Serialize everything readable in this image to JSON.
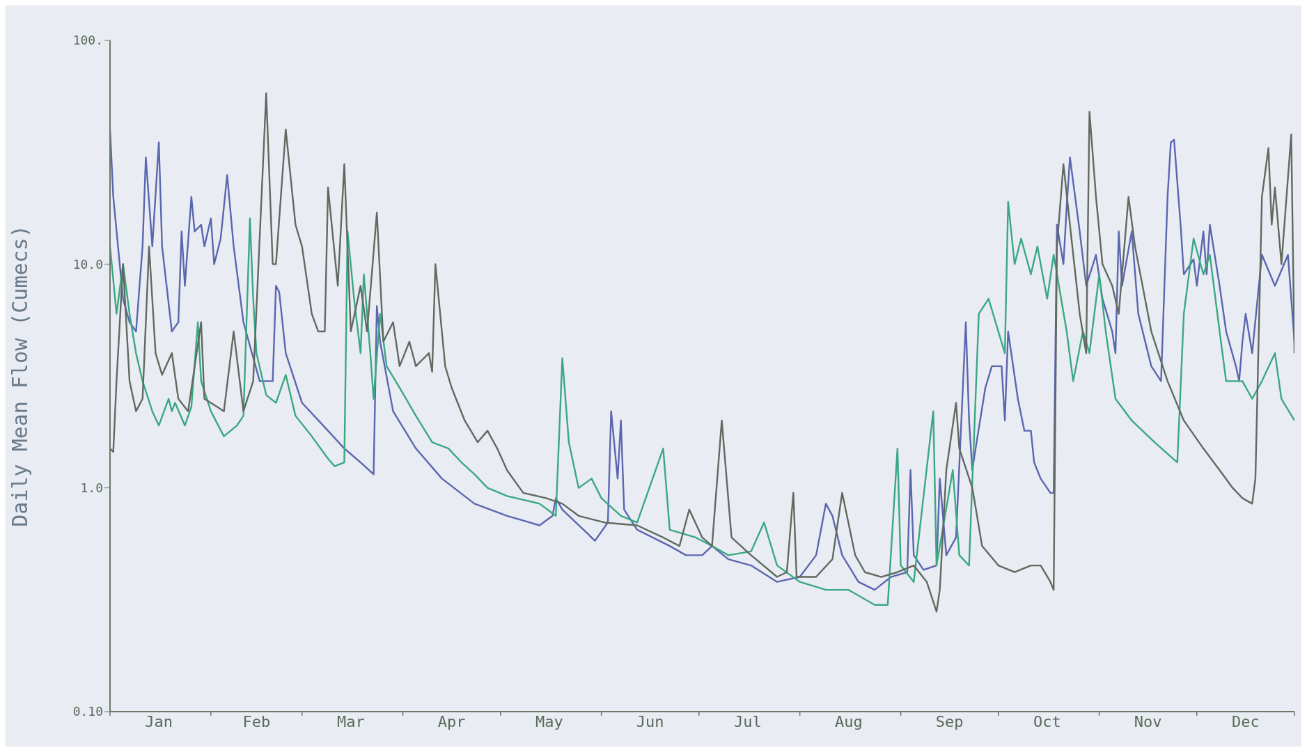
{
  "chart_data": {
    "type": "line",
    "ylabel": "Daily Mean Flow (Cumecs)",
    "log": "y",
    "grid": false,
    "marker": "none",
    "line_style": "solid",
    "xlim": [
      "--01-01",
      "--12-31"
    ],
    "xticks": [
      {
        "value": "--01-01",
        "label": null
      },
      {
        "value": "--01-16",
        "label": "Jan"
      },
      {
        "value": "--02-01",
        "label": null
      },
      {
        "value": "--02-15",
        "label": "Feb"
      },
      {
        "value": "--03-01",
        "label": null
      },
      {
        "value": "--03-16",
        "label": "Mar"
      },
      {
        "value": "--04-01",
        "label": null
      },
      {
        "value": "--04-16",
        "label": "Apr"
      },
      {
        "value": "--05-01",
        "label": null
      },
      {
        "value": "--05-16",
        "label": "May"
      },
      {
        "value": "--06-01",
        "label": null
      },
      {
        "value": "--06-16",
        "label": "Jun"
      },
      {
        "value": "--07-01",
        "label": null
      },
      {
        "value": "--07-16",
        "label": "Jul"
      },
      {
        "value": "--08-01",
        "label": null
      },
      {
        "value": "--08-16",
        "label": "Aug"
      },
      {
        "value": "--09-01",
        "label": null
      },
      {
        "value": "--09-16",
        "label": "Sep"
      },
      {
        "value": "--10-01",
        "label": null
      },
      {
        "value": "--10-16",
        "label": "Oct"
      },
      {
        "value": "--11-01",
        "label": null
      },
      {
        "value": "--11-16",
        "label": "Nov"
      },
      {
        "value": "--12-01",
        "label": null
      },
      {
        "value": "--12-16",
        "label": "Dec"
      },
      {
        "value": "--12-31",
        "label": null
      }
    ],
    "ylim": [
      0.1,
      100
    ],
    "yticks": [
      {
        "value": 0.1,
        "label": "0.10"
      },
      {
        "value": 1,
        "label": "1.0"
      },
      {
        "value": 10,
        "label": "10.0"
      },
      {
        "value": 100,
        "label": "100."
      }
    ],
    "series": [
      {
        "color": "#5b66b0",
        "x": [
          "--01-01",
          "--01-02",
          "--01-05",
          "--01-07",
          "--01-09",
          "--01-11",
          "--01-12",
          "--01-14",
          "--01-16",
          "--01-17",
          "--01-20",
          "--01-22",
          "--01-23",
          "--01-24",
          "--01-26",
          "--01-27",
          "--01-29",
          "--01-30",
          "--02-01",
          "--02-02",
          "--02-04",
          "--02-06",
          "--02-08",
          "--02-11",
          "--02-16",
          "--02-20",
          "--02-21",
          "--02-22",
          "--02-24",
          "--03-01",
          "--03-09",
          "--03-14",
          "--03-19",
          "--03-23",
          "--03-24",
          "--03-25",
          "--03-29",
          "--04-05",
          "--04-13",
          "--04-23",
          "--05-03",
          "--05-13",
          "--05-17",
          "--05-18",
          "--05-20",
          "--05-28",
          "--05-30",
          "--06-03",
          "--06-04",
          "--06-06",
          "--06-07",
          "--06-08",
          "--06-12",
          "--06-22",
          "--06-27",
          "--07-02",
          "--07-05",
          "--07-10",
          "--07-17",
          "--07-25",
          "--08-01",
          "--08-06",
          "--08-09",
          "--08-11",
          "--08-14",
          "--08-19",
          "--08-24",
          "--08-29",
          "--09-03",
          "--09-04",
          "--09-05",
          "--09-08",
          "--09-12",
          "--09-13",
          "--09-15",
          "--09-18",
          "--09-21",
          "--09-22",
          "--09-23",
          "--09-24",
          "--09-27",
          "--09-29",
          "--10-02",
          "--10-03",
          "--10-04",
          "--10-07",
          "--10-09",
          "--10-11",
          "--10-12",
          "--10-14",
          "--10-17",
          "--10-18",
          "--10-19",
          "--10-21",
          "--10-22",
          "--10-23",
          "--10-26",
          "--10-28",
          "--10-31",
          "--11-02",
          "--11-05",
          "--11-06",
          "--11-07",
          "--11-08",
          "--11-11",
          "--11-13",
          "--11-17",
          "--11-20",
          "--11-22",
          "--11-23",
          "--11-24",
          "--11-26",
          "--11-27",
          "--11-30",
          "--12-01",
          "--12-03",
          "--12-04",
          "--12-05",
          "--12-08",
          "--12-10",
          "--12-13",
          "--12-14",
          "--12-15",
          "--12-16",
          "--12-18",
          "--12-21",
          "--12-25",
          "--12-29",
          "--12-31"
        ],
        "values": [
          40,
          20,
          7,
          5.5,
          5,
          12,
          30,
          12,
          35,
          12,
          5,
          5.5,
          14,
          8,
          20,
          14,
          15,
          12,
          16,
          10,
          13,
          25,
          12,
          5.5,
          3,
          3,
          8,
          7.5,
          4,
          2.4,
          1.8,
          1.5,
          1.3,
          1.15,
          6.5,
          4.5,
          2.2,
          1.5,
          1.1,
          0.85,
          0.75,
          0.68,
          0.75,
          0.9,
          0.8,
          0.62,
          0.58,
          0.7,
          2.2,
          1.1,
          2,
          0.8,
          0.65,
          0.55,
          0.5,
          0.5,
          0.55,
          0.48,
          0.45,
          0.38,
          0.4,
          0.5,
          0.85,
          0.75,
          0.5,
          0.38,
          0.35,
          0.4,
          0.42,
          1.2,
          0.5,
          0.43,
          0.45,
          1.1,
          0.5,
          0.6,
          5.5,
          2,
          1.2,
          1.5,
          2.8,
          3.5,
          3.5,
          2,
          5,
          2.5,
          1.8,
          1.8,
          1.3,
          1.1,
          0.95,
          0.95,
          15,
          10,
          18,
          30,
          14,
          8,
          11,
          7,
          5,
          4,
          14,
          8,
          14,
          6,
          3.5,
          3,
          20,
          35,
          36,
          15,
          9,
          10.5,
          8,
          14,
          9,
          15,
          8,
          5,
          3.5,
          3,
          4.5,
          6,
          4,
          11,
          8,
          11,
          4.5
        ]
      },
      {
        "color": "#3aa884",
        "x": [
          "--01-01",
          "--01-03",
          "--01-05",
          "--01-07",
          "--01-09",
          "--01-11",
          "--01-14",
          "--01-16",
          "--01-19",
          "--01-20",
          "--01-21",
          "--01-24",
          "--01-26",
          "--01-28",
          "--01-29",
          "--02-01",
          "--02-05",
          "--02-09",
          "--02-11",
          "--02-13",
          "--02-14",
          "--02-15",
          "--02-18",
          "--02-21",
          "--02-24",
          "--02-27",
          "--03-04",
          "--03-09",
          "--03-11",
          "--03-14",
          "--03-15",
          "--03-17",
          "--03-19",
          "--03-20",
          "--03-22",
          "--03-23",
          "--03-25",
          "--03-27",
          "--03-31",
          "--04-05",
          "--04-10",
          "--04-15",
          "--04-19",
          "--04-23",
          "--04-27",
          "--05-03",
          "--05-13",
          "--05-18",
          "--05-20",
          "--05-22",
          "--05-25",
          "--05-29",
          "--06-01",
          "--06-07",
          "--06-12",
          "--06-20",
          "--06-22",
          "--06-30",
          "--07-05",
          "--07-10",
          "--07-17",
          "--07-21",
          "--07-25",
          "--08-01",
          "--08-09",
          "--08-16",
          "--08-24",
          "--08-28",
          "--08-31",
          "--09-01",
          "--09-05",
          "--09-11",
          "--09-12",
          "--09-17",
          "--09-19",
          "--09-22",
          "--09-25",
          "--09-28",
          "--10-01",
          "--10-03",
          "--10-04",
          "--10-06",
          "--10-08",
          "--10-11",
          "--10-13",
          "--10-16",
          "--10-18",
          "--10-22",
          "--10-24",
          "--10-27",
          "--10-29",
          "--11-01",
          "--11-03",
          "--11-06",
          "--11-11",
          "--11-18",
          "--11-25",
          "--11-27",
          "--11-30",
          "--12-03",
          "--12-05",
          "--12-08",
          "--12-10",
          "--12-15",
          "--12-18",
          "--12-21",
          "--12-25",
          "--12-27",
          "--12-31"
        ],
        "values": [
          12,
          6,
          10,
          6,
          4,
          3,
          2.2,
          1.9,
          2.5,
          2.2,
          2.4,
          1.9,
          2.3,
          5.5,
          3,
          2.2,
          1.7,
          1.9,
          2.1,
          16,
          7,
          4,
          2.6,
          2.4,
          3.2,
          2.1,
          1.7,
          1.35,
          1.25,
          1.3,
          14,
          7,
          4,
          9,
          4,
          2.5,
          6,
          3.5,
          2.8,
          2.1,
          1.6,
          1.5,
          1.3,
          1.15,
          1,
          0.92,
          0.85,
          0.75,
          3.8,
          1.6,
          1,
          1.1,
          0.9,
          0.75,
          0.7,
          1.5,
          0.65,
          0.6,
          0.55,
          0.5,
          0.52,
          0.7,
          0.45,
          0.38,
          0.35,
          0.35,
          0.3,
          0.3,
          1.5,
          0.45,
          0.38,
          2.2,
          0.45,
          1.2,
          0.5,
          0.45,
          6,
          7,
          5,
          4,
          19,
          10,
          13,
          9,
          12,
          7,
          11,
          5,
          3,
          5,
          4,
          9,
          5,
          2.5,
          2,
          1.6,
          1.3,
          6,
          13,
          9,
          11,
          5,
          3,
          3,
          2.5,
          3,
          4,
          2.5,
          2
        ]
      },
      {
        "color": "#606a60",
        "x": [
          "--01-01",
          "--01-02",
          "--01-03",
          "--01-05",
          "--01-07",
          "--01-09",
          "--01-11",
          "--01-13",
          "--01-15",
          "--01-17",
          "--01-20",
          "--01-22",
          "--01-25",
          "--01-29",
          "--01-30",
          "--02-03",
          "--02-05",
          "--02-08",
          "--02-11",
          "--02-14",
          "--02-18",
          "--02-20",
          "--02-21",
          "--02-24",
          "--02-27",
          "--03-01",
          "--03-04",
          "--03-06",
          "--03-08",
          "--03-09",
          "--03-12",
          "--03-14",
          "--03-16",
          "--03-19",
          "--03-21",
          "--03-24",
          "--03-26",
          "--03-29",
          "--03-31",
          "--04-03",
          "--04-05",
          "--04-09",
          "--04-10",
          "--04-11",
          "--04-14",
          "--04-16",
          "--04-20",
          "--04-24",
          "--04-27",
          "--04-30",
          "--05-03",
          "--05-08",
          "--05-15",
          "--05-20",
          "--05-25",
          "--06-02",
          "--06-12",
          "--06-20",
          "--06-25",
          "--06-28",
          "--07-02",
          "--07-05",
          "--07-08",
          "--07-11",
          "--07-17",
          "--07-25",
          "--07-28",
          "--07-30",
          "--07-31",
          "--08-06",
          "--08-11",
          "--08-14",
          "--08-18",
          "--08-21",
          "--08-26",
          "--08-31",
          "--09-05",
          "--09-09",
          "--09-12",
          "--09-13",
          "--09-15",
          "--09-18",
          "--09-19",
          "--09-23",
          "--09-26",
          "--10-01",
          "--10-06",
          "--10-11",
          "--10-14",
          "--10-17",
          "--10-18",
          "--10-19",
          "--10-21",
          "--10-23",
          "--10-26",
          "--10-28",
          "--10-29",
          "--10-31",
          "--11-02",
          "--11-05",
          "--11-07",
          "--11-10",
          "--11-12",
          "--11-17",
          "--11-22",
          "--11-27",
          "--12-03",
          "--12-08",
          "--12-12",
          "--12-15",
          "--12-18",
          "--12-19",
          "--12-21",
          "--12-23",
          "--12-24",
          "--12-25",
          "--12-27",
          "--12-30",
          "--12-31"
        ],
        "values": [
          1.5,
          1.45,
          3,
          10,
          3,
          2.2,
          2.5,
          12,
          4,
          3.2,
          4,
          2.5,
          2.2,
          5.5,
          2.5,
          2.3,
          2.2,
          5,
          2.2,
          3,
          58,
          10,
          10,
          40,
          15,
          12,
          6,
          5,
          5,
          22,
          8,
          28,
          5,
          8,
          5,
          17,
          4.5,
          5.5,
          3.5,
          4.5,
          3.5,
          4,
          3.3,
          10,
          3.5,
          2.8,
          2,
          1.6,
          1.8,
          1.5,
          1.2,
          0.95,
          0.9,
          0.85,
          0.75,
          0.7,
          0.68,
          0.6,
          0.55,
          0.8,
          0.6,
          0.55,
          2,
          0.6,
          0.5,
          0.4,
          0.42,
          0.95,
          0.4,
          0.4,
          0.48,
          0.95,
          0.5,
          0.42,
          0.4,
          0.42,
          0.45,
          0.38,
          0.28,
          0.35,
          1.2,
          2.4,
          1.5,
          1,
          0.55,
          0.45,
          0.42,
          0.45,
          0.45,
          0.38,
          0.35,
          12,
          28,
          15,
          6,
          4,
          48,
          20,
          10,
          8,
          6,
          20,
          12,
          5,
          3,
          2,
          1.5,
          1.2,
          1,
          0.9,
          0.85,
          1.1,
          20,
          33,
          15,
          22,
          10,
          38,
          4
        ]
      }
    ]
  }
}
